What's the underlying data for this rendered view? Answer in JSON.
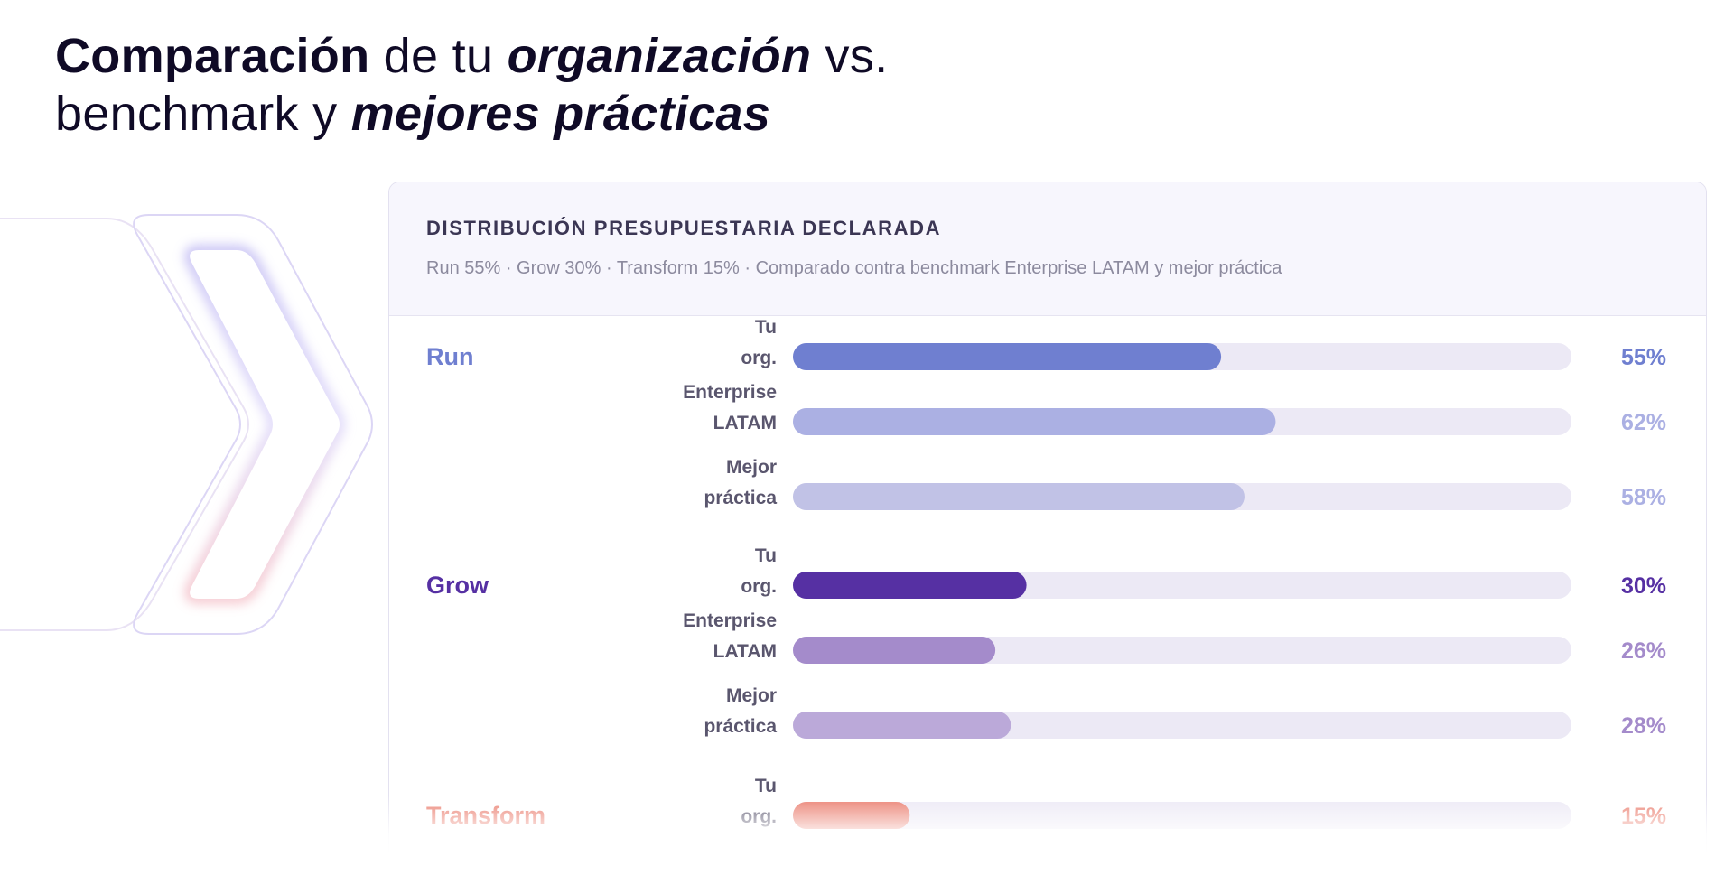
{
  "title": {
    "part1": "Comparación",
    "part2": " de tu ",
    "part3": "organización",
    "part4": " vs.",
    "part5": "benchmark y ",
    "part6": "mejores prácticas"
  },
  "card": {
    "title": "DISTRIBUCIÓN PRESUPUESTARIA DECLARADA",
    "subtitle": "Run 55% · Grow 30% · Transform 15% · Comparado contra benchmark Enterprise LATAM y mejor práctica"
  },
  "colors": {
    "run": [
      "#6f7fd0",
      "#abb0e3",
      "#c1c2e6"
    ],
    "grow": [
      "#5630a3",
      "#a48bcb",
      "#bba9d9"
    ],
    "transform": [
      "#ea7e6f",
      "#f0aa9f",
      "#f4c4bb"
    ],
    "track": "#ece9f5"
  },
  "chart_data": {
    "type": "bar",
    "orientation": "horizontal",
    "xlim": [
      0,
      100
    ],
    "unit": "%",
    "groups": [
      {
        "name": "Run",
        "bars": [
          {
            "label": "Tu org.",
            "value": 55
          },
          {
            "label": "Enterprise LATAM",
            "value": 62
          },
          {
            "label": "Mejor práctica",
            "value": 58
          }
        ]
      },
      {
        "name": "Grow",
        "bars": [
          {
            "label": "Tu org.",
            "value": 30
          },
          {
            "label": "Enterprise LATAM",
            "value": 26
          },
          {
            "label": "Mejor práctica",
            "value": 28
          }
        ]
      },
      {
        "name": "Transform",
        "bars": [
          {
            "label": "Tu org.",
            "value": 15
          }
        ]
      }
    ]
  }
}
